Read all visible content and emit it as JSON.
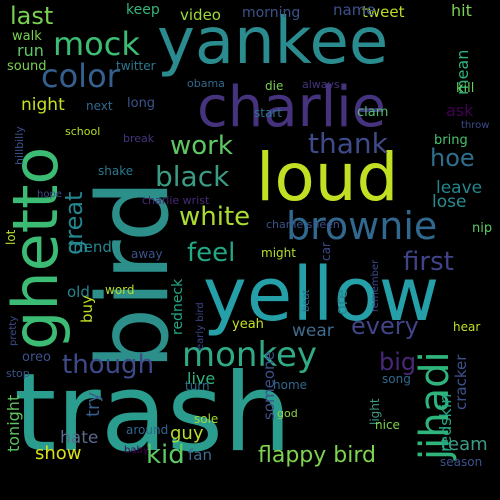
{
  "words": [
    {
      "text": "trash",
      "color": "#2a9d8f"
    },
    {
      "text": "bird",
      "color": "#2c8f8a"
    },
    {
      "text": "yellow",
      "color": "#26a0a8"
    },
    {
      "text": "yankee",
      "color": "#2b8c8f"
    },
    {
      "text": "charlie",
      "color": "#46337e"
    },
    {
      "text": "loud",
      "color": "#c2df23"
    },
    {
      "text": "ghetto",
      "color": "#3cbb75"
    },
    {
      "text": "brownie",
      "color": "#31688e"
    },
    {
      "text": "jihadi",
      "color": "#2fb47c"
    },
    {
      "text": "monkey",
      "color": "#30a986"
    },
    {
      "text": "mock",
      "color": "#3dbc74"
    },
    {
      "text": "color",
      "color": "#35608d"
    },
    {
      "text": "black",
      "color": "#3b9b85"
    },
    {
      "text": "white",
      "color": "#aadc32"
    },
    {
      "text": "work",
      "color": "#5ec962"
    },
    {
      "text": "thank",
      "color": "#3e4a89"
    },
    {
      "text": "feel",
      "color": "#22a884"
    },
    {
      "text": "first",
      "color": "#404387"
    },
    {
      "text": "every",
      "color": "#414487"
    },
    {
      "text": "though",
      "color": "#3e4a89"
    },
    {
      "text": "hoe",
      "color": "#2d708e"
    },
    {
      "text": "great",
      "color": "#24868e"
    },
    {
      "text": "last",
      "color": "#7ad151"
    },
    {
      "text": "big",
      "color": "#482878"
    },
    {
      "text": "flappy bird",
      "color": "#7fd34e"
    },
    {
      "text": "kid",
      "color": "#5ec962"
    },
    {
      "text": "guy",
      "color": "#b5de2b"
    },
    {
      "text": "team",
      "color": "#3b9b85"
    },
    {
      "text": "show",
      "color": "#d8e219"
    },
    {
      "text": "try",
      "color": "#35608d"
    },
    {
      "text": "tonight",
      "color": "#60c45e"
    },
    {
      "text": "hate",
      "color": "#5a6b8e"
    },
    {
      "text": "live",
      "color": "#30b47c"
    },
    {
      "text": "wear",
      "color": "#3f6b8e"
    },
    {
      "text": "leave",
      "color": "#24868e"
    },
    {
      "text": "lose",
      "color": "#2b8c8f"
    },
    {
      "text": "night",
      "color": "#c8e020"
    },
    {
      "text": "video",
      "color": "#9fda3a"
    },
    {
      "text": "morning",
      "color": "#3b528b"
    },
    {
      "text": "tweet",
      "color": "#bade28"
    },
    {
      "text": "hit",
      "color": "#7ad151"
    },
    {
      "text": "name",
      "color": "#3b528b"
    },
    {
      "text": "keep",
      "color": "#34b679"
    },
    {
      "text": "run",
      "color": "#5ec962"
    },
    {
      "text": "walk",
      "color": "#7ad151"
    },
    {
      "text": "sound",
      "color": "#7ad151"
    },
    {
      "text": "twitter",
      "color": "#2a788e"
    },
    {
      "text": "mean",
      "color": "#2fb47c"
    },
    {
      "text": "kill",
      "color": "#6ccd5a"
    },
    {
      "text": "ask",
      "color": "#440154"
    },
    {
      "text": "throw",
      "color": "#3e4a89"
    },
    {
      "text": "bring",
      "color": "#4ac16d"
    },
    {
      "text": "next",
      "color": "#31688e"
    },
    {
      "text": "long",
      "color": "#3b528b"
    },
    {
      "text": "obama",
      "color": "#31688e"
    },
    {
      "text": "die",
      "color": "#7ad151"
    },
    {
      "text": "always",
      "color": "#46337e"
    },
    {
      "text": "clam",
      "color": "#4ac16d"
    },
    {
      "text": "start",
      "color": "#2d708e"
    },
    {
      "text": "school",
      "color": "#b5de2b"
    },
    {
      "text": "break",
      "color": "#46337e"
    },
    {
      "text": "shake",
      "color": "#2a788e"
    },
    {
      "text": "charlie wrist",
      "color": "#482878"
    },
    {
      "text": "hope",
      "color": "#3e4a89"
    },
    {
      "text": "away",
      "color": "#3b528b"
    },
    {
      "text": "friend",
      "color": "#24868e"
    },
    {
      "text": "hillbilly",
      "color": "#3b528b"
    },
    {
      "text": "charlie sheen",
      "color": "#3b528b"
    },
    {
      "text": "nip",
      "color": "#5ec962"
    },
    {
      "text": "lot",
      "color": "#b5de2b"
    },
    {
      "text": "might",
      "color": "#b5de2b"
    },
    {
      "text": "word",
      "color": "#b5de2b"
    },
    {
      "text": "old",
      "color": "#24868e"
    },
    {
      "text": "buy",
      "color": "#bddf26"
    },
    {
      "text": "redneck",
      "color": "#22a884"
    },
    {
      "text": "car",
      "color": "#3e4a89"
    },
    {
      "text": "ore",
      "color": "#26828e"
    },
    {
      "text": "beat",
      "color": "#2d708e"
    },
    {
      "text": "remember",
      "color": "#3e4a89"
    },
    {
      "text": "pretty",
      "color": "#3e4a89"
    },
    {
      "text": "early bird",
      "color": "#404387"
    },
    {
      "text": "oreo",
      "color": "#3b528b"
    },
    {
      "text": "stop",
      "color": "#3b528b"
    },
    {
      "text": "yeah",
      "color": "#c8e020"
    },
    {
      "text": "turn",
      "color": "#2d708e"
    },
    {
      "text": "home",
      "color": "#31688e"
    },
    {
      "text": "someone",
      "color": "#3b528b"
    },
    {
      "text": "song",
      "color": "#31688e"
    },
    {
      "text": "light",
      "color": "#3b9b85"
    },
    {
      "text": "hear",
      "color": "#c2df23"
    },
    {
      "text": "cracker",
      "color": "#3b528b"
    },
    {
      "text": "redskin",
      "color": "#22a884"
    },
    {
      "text": "sole",
      "color": "#a2da37"
    },
    {
      "text": "god",
      "color": "#8ed645"
    },
    {
      "text": "around",
      "color": "#31688e"
    },
    {
      "text": "nice",
      "color": "#7fd34e"
    },
    {
      "text": "baby",
      "color": "#440154"
    },
    {
      "text": "fan",
      "color": "#3f6b8e"
    },
    {
      "text": "season",
      "color": "#3b528b"
    }
  ]
}
